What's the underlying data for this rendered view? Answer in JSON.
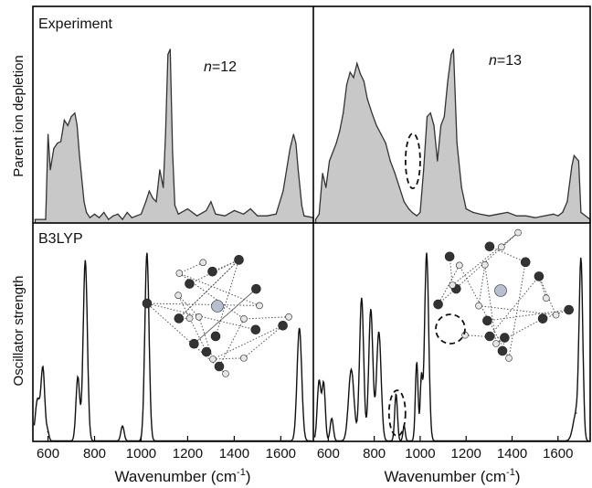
{
  "chart_data": [
    {
      "type": "area",
      "panel": "top-left",
      "title": "Experiment",
      "annotation": {
        "var": "n",
        "value": "=12"
      },
      "ylabel": "Parent ion depletion",
      "xlim": [
        535,
        1740
      ],
      "fill_color": "#c8c8c8",
      "x": [
        545,
        590,
        600,
        610,
        625,
        640,
        655,
        670,
        685,
        700,
        715,
        725,
        735,
        745,
        755,
        765,
        780,
        800,
        820,
        840,
        860,
        880,
        900,
        920,
        940,
        960,
        980,
        1000,
        1020,
        1035,
        1050,
        1065,
        1080,
        1095,
        1105,
        1115,
        1125,
        1135,
        1145,
        1160,
        1200,
        1240,
        1280,
        1300,
        1320,
        1360,
        1400,
        1440,
        1470,
        1500,
        1540,
        1580,
        1610,
        1640,
        1655,
        1665,
        1675,
        1690,
        1700,
        1740
      ],
      "y": [
        0.02,
        0.02,
        0.5,
        0.3,
        0.42,
        0.45,
        0.46,
        0.58,
        0.55,
        0.6,
        0.62,
        0.55,
        0.38,
        0.25,
        0.12,
        0.06,
        0.03,
        0.05,
        0.03,
        0.06,
        0.02,
        0.04,
        0.05,
        0.02,
        0.06,
        0.03,
        0.04,
        0.05,
        0.12,
        0.18,
        0.14,
        0.12,
        0.3,
        0.2,
        0.5,
        0.95,
        0.98,
        0.4,
        0.1,
        0.05,
        0.08,
        0.04,
        0.07,
        0.12,
        0.05,
        0.04,
        0.07,
        0.05,
        0.08,
        0.04,
        0.04,
        0.05,
        0.18,
        0.42,
        0.5,
        0.45,
        0.3,
        0.1,
        0.04,
        0.03
      ]
    },
    {
      "type": "area",
      "panel": "top-right",
      "annotation": {
        "var": "n",
        "value": "=13"
      },
      "xlim": [
        535,
        1740
      ],
      "fill_color": "#c8c8c8",
      "x": [
        545,
        560,
        575,
        590,
        605,
        620,
        635,
        650,
        665,
        680,
        695,
        710,
        725,
        740,
        755,
        770,
        790,
        810,
        830,
        850,
        870,
        890,
        910,
        930,
        950,
        965,
        975,
        985,
        1000,
        1015,
        1030,
        1045,
        1060,
        1075,
        1090,
        1105,
        1120,
        1135,
        1145,
        1160,
        1180,
        1200,
        1230,
        1260,
        1300,
        1340,
        1380,
        1420,
        1460,
        1500,
        1540,
        1580,
        1600,
        1620,
        1640,
        1660,
        1670,
        1690,
        1700,
        1740
      ],
      "y": [
        0.02,
        0.05,
        0.28,
        0.2,
        0.35,
        0.4,
        0.45,
        0.52,
        0.62,
        0.78,
        0.85,
        0.82,
        0.9,
        0.84,
        0.8,
        0.7,
        0.62,
        0.55,
        0.5,
        0.45,
        0.35,
        0.28,
        0.2,
        0.12,
        0.08,
        0.06,
        0.05,
        0.04,
        0.06,
        0.3,
        0.6,
        0.62,
        0.55,
        0.35,
        0.55,
        0.6,
        0.8,
        0.95,
        0.98,
        0.45,
        0.2,
        0.08,
        0.06,
        0.05,
        0.04,
        0.05,
        0.06,
        0.04,
        0.04,
        0.03,
        0.04,
        0.05,
        0.04,
        0.06,
        0.12,
        0.32,
        0.38,
        0.35,
        0.06,
        0.02
      ],
      "dashed_ellipse": {
        "x": 968,
        "y": 0.35
      }
    },
    {
      "type": "line",
      "panel": "bottom-left",
      "title": "B3LYP",
      "ylabel": "Oscillator strength",
      "xlabel": "Wavenumber (cm-1)",
      "xlim": [
        535,
        1740
      ],
      "x_ticks": [
        600,
        800,
        1000,
        1200,
        1400,
        1600
      ],
      "peaks": [
        {
          "x": 555,
          "height": 0.22,
          "width": 10
        },
        {
          "x": 578,
          "height": 0.38,
          "width": 8
        },
        {
          "x": 598,
          "height": 0.05,
          "width": 6
        },
        {
          "x": 728,
          "height": 0.34,
          "width": 8
        },
        {
          "x": 760,
          "height": 0.96,
          "width": 9
        },
        {
          "x": 920,
          "height": 0.08,
          "width": 7
        },
        {
          "x": 1025,
          "height": 1.0,
          "width": 9
        },
        {
          "x": 1680,
          "height": 0.6,
          "width": 10
        }
      ]
    },
    {
      "type": "line",
      "panel": "bottom-right",
      "xlabel": "Wavenumber (cm-1)",
      "xlim": [
        535,
        1740
      ],
      "x_ticks": [
        600,
        800,
        1000,
        1200,
        1400,
        1600
      ],
      "peaks": [
        {
          "x": 560,
          "height": 0.32,
          "width": 8
        },
        {
          "x": 580,
          "height": 0.3,
          "width": 7
        },
        {
          "x": 615,
          "height": 0.12,
          "width": 7
        },
        {
          "x": 700,
          "height": 0.38,
          "width": 12
        },
        {
          "x": 745,
          "height": 0.76,
          "width": 9
        },
        {
          "x": 785,
          "height": 0.7,
          "width": 9
        },
        {
          "x": 820,
          "height": 0.58,
          "width": 10
        },
        {
          "x": 895,
          "height": 0.25,
          "width": 6
        },
        {
          "x": 930,
          "height": 0.08,
          "width": 5
        },
        {
          "x": 985,
          "height": 0.42,
          "width": 6
        },
        {
          "x": 1005,
          "height": 0.32,
          "width": 5
        },
        {
          "x": 1028,
          "height": 1.0,
          "width": 9
        },
        {
          "x": 1680,
          "height": 0.15,
          "width": 14
        },
        {
          "x": 1700,
          "height": 0.92,
          "width": 8
        }
      ],
      "dashed_ellipse": {
        "x": 900,
        "y": 0.15
      }
    }
  ],
  "labels": {
    "experiment": "Experiment",
    "b3lyp": "B3LYP",
    "ylabel_top": "Parent ion depletion",
    "ylabel_bottom": "Oscillator strength",
    "xlabel_main": "Wavenumber (cm",
    "xlabel_sup": "-1",
    "xlabel_end": ")",
    "n_var": "n",
    "n12": "=12",
    "n13": "=13"
  },
  "x_tick_labels": [
    "600",
    "800",
    "1000",
    "1200",
    "1400",
    "1600"
  ]
}
